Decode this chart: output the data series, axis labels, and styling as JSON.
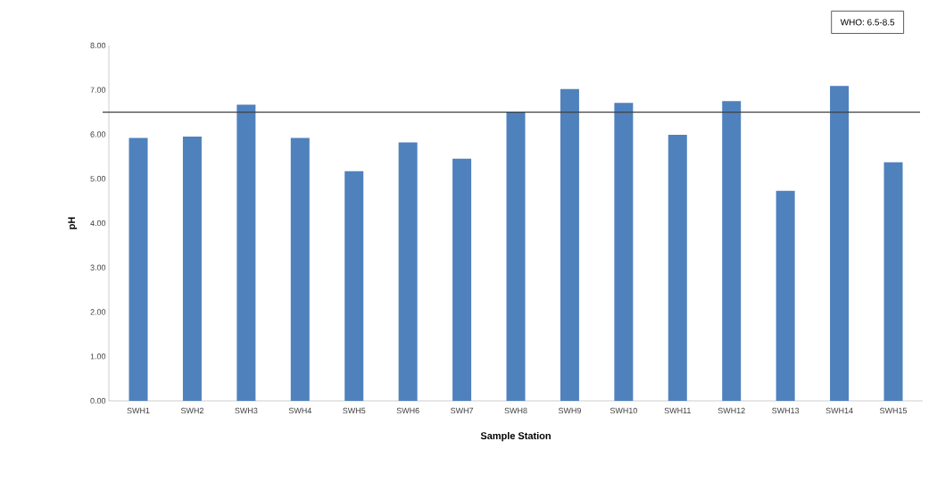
{
  "chart_data": {
    "type": "bar",
    "xlabel": "Sample Station",
    "ylabel": "pH",
    "categories": [
      "SWH1",
      "SWH2",
      "SWH3",
      "SWH4",
      "SWH5",
      "SWH6",
      "SWH7",
      "SWH8",
      "SWH9",
      "SWH10",
      "SWH11",
      "SWH12",
      "SWH13",
      "SWH14",
      "SWH15"
    ],
    "values": [
      5.92,
      5.95,
      6.67,
      5.92,
      5.17,
      5.82,
      5.45,
      6.5,
      7.02,
      6.71,
      5.99,
      6.75,
      4.73,
      7.09,
      5.37
    ],
    "color": "#4f81bd",
    "ylim": [
      0,
      8
    ],
    "yticks": [
      {
        "value": 0,
        "label": "0.00"
      },
      {
        "value": 1,
        "label": "1.00"
      },
      {
        "value": 2,
        "label": "2.00"
      },
      {
        "value": 3,
        "label": "3.00"
      },
      {
        "value": 4,
        "label": "4.00"
      },
      {
        "value": 5,
        "label": "5.00"
      },
      {
        "value": 6,
        "label": "6.00"
      },
      {
        "value": 7,
        "label": "7.00"
      },
      {
        "value": 8,
        "label": "8.00"
      }
    ],
    "ref_lines": [
      {
        "axis": "y",
        "value": 6.5,
        "color": "#404040"
      }
    ],
    "annotations": [
      "WHO: 6.5-8.5"
    ],
    "grid": false
  }
}
